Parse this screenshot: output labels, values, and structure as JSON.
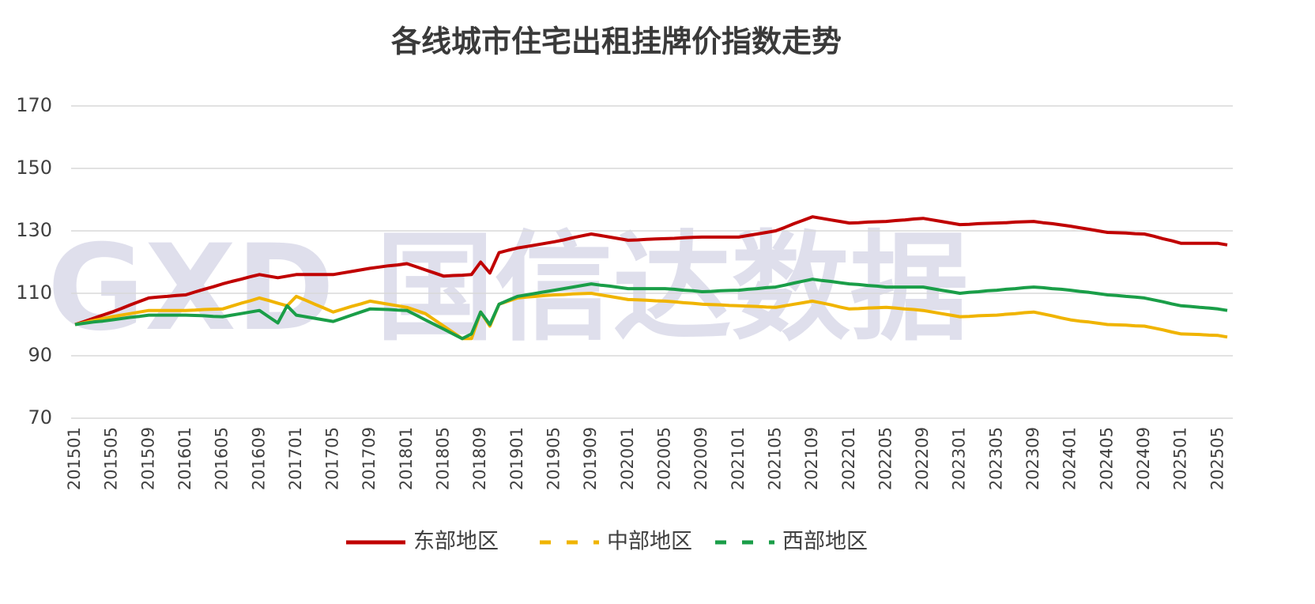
{
  "chart_data": {
    "type": "line",
    "title": "各线城市住宅出租挂牌价指数走势",
    "watermark": "GXD 国信达数据",
    "categories": [
      "201501",
      null,
      null,
      null,
      "201505",
      null,
      null,
      null,
      "201509",
      null,
      null,
      null,
      "201601",
      null,
      null,
      null,
      "201605",
      null,
      null,
      null,
      "201609",
      null,
      null,
      null,
      "201701",
      null,
      null,
      null,
      "201705",
      null,
      null,
      null,
      "201709",
      null,
      null,
      null,
      "201801",
      null,
      null,
      null,
      "201805",
      null,
      null,
      null,
      "201809",
      null,
      null,
      null,
      "201901",
      null,
      null,
      null,
      "201905",
      null,
      null,
      null,
      "201909",
      null,
      null,
      null,
      "202001",
      null,
      null,
      null,
      "202005",
      null,
      null,
      null,
      "202009",
      null,
      null,
      null,
      "202101",
      null,
      null,
      null,
      "202105",
      null,
      null,
      null,
      "202109",
      null,
      null,
      null,
      "202201",
      null,
      null,
      null,
      "202205",
      null,
      null,
      null,
      "202209",
      null,
      null,
      null,
      "202301",
      null,
      null,
      null,
      "202305",
      null,
      null,
      null,
      "202309",
      null,
      null,
      null,
      "202401",
      null,
      null,
      null,
      "202405",
      null,
      null,
      null,
      "202409",
      null,
      null,
      null,
      "202501",
      null,
      null,
      null,
      "202505",
      null
    ],
    "ylim": [
      70,
      170
    ],
    "yticks": [
      70,
      90,
      110,
      130,
      150,
      170
    ],
    "grid": true,
    "series": [
      {
        "name": "东部地区",
        "color": "#c00000",
        "legend_line": "solid",
        "values": [
          100,
          101,
          102,
          103,
          104,
          105.1,
          106.3,
          107.4,
          108.5,
          108.8,
          109,
          109.3,
          109.5,
          110.4,
          111.3,
          112.1,
          113,
          113.8,
          114.5,
          115.3,
          116,
          115.5,
          115,
          115.5,
          116,
          116,
          116,
          116,
          116,
          116.5,
          117,
          117.5,
          118,
          118.4,
          118.8,
          119.1,
          119.5,
          118.5,
          117.5,
          116.5,
          115.5,
          115.7,
          115.8,
          116,
          120,
          116.5,
          123,
          123.8,
          124.5,
          125,
          125.5,
          126,
          126.5,
          127.1,
          127.8,
          128.4,
          129,
          128.5,
          128,
          127.5,
          127,
          127.1,
          127.3,
          127.4,
          127.5,
          127.6,
          127.8,
          127.9,
          128,
          128,
          128,
          128,
          128,
          128.5,
          129,
          129.5,
          130,
          131.1,
          132.3,
          133.4,
          134.5,
          134,
          133.5,
          133,
          132.5,
          132.6,
          132.8,
          132.9,
          133,
          133.3,
          133.5,
          133.8,
          134,
          133.5,
          133,
          132.5,
          132,
          132.1,
          132.3,
          132.4,
          132.5,
          132.6,
          132.8,
          132.9,
          133,
          132.6,
          132.3,
          131.9,
          131.5,
          131,
          130.5,
          130,
          129.5,
          129.4,
          129.3,
          129.1,
          129,
          128.3,
          127.5,
          126.8,
          126,
          126,
          126,
          126,
          126,
          125.5
        ]
      },
      {
        "name": "中部地区",
        "color": "#f0b400",
        "legend_line": "dashed",
        "values": [
          100,
          100.6,
          101.3,
          101.9,
          102.5,
          103,
          103.5,
          104,
          104.5,
          104.5,
          104.5,
          104.5,
          104.5,
          104.6,
          104.8,
          104.9,
          105,
          105.9,
          106.8,
          107.6,
          108.5,
          107.7,
          106.8,
          106,
          109,
          107.8,
          106.5,
          105.3,
          104,
          104.9,
          105.8,
          106.6,
          107.5,
          107,
          106.5,
          106,
          105.5,
          104.5,
          103.5,
          101.5,
          99.5,
          97.5,
          95.5,
          95.5,
          104,
          99.5,
          106.5,
          107.5,
          108.5,
          108.8,
          109,
          109.3,
          109.5,
          109.6,
          109.8,
          109.9,
          110,
          109.5,
          109,
          108.5,
          108,
          107.9,
          107.8,
          107.6,
          107.5,
          107.3,
          107,
          106.8,
          106.5,
          106.4,
          106.3,
          106.1,
          106,
          105.9,
          105.8,
          105.6,
          105.5,
          106,
          106.5,
          107,
          107.5,
          106.9,
          106.3,
          105.6,
          105,
          105.1,
          105.3,
          105.4,
          105.5,
          105.3,
          105,
          104.8,
          104.5,
          104,
          103.5,
          103,
          102.5,
          102.6,
          102.8,
          102.9,
          103,
          103.3,
          103.5,
          103.8,
          104,
          103.4,
          102.8,
          102.1,
          101.5,
          101.1,
          100.8,
          100.4,
          100,
          99.9,
          99.8,
          99.6,
          99.5,
          98.9,
          98.3,
          97.6,
          97,
          96.9,
          96.8,
          96.6,
          96.5,
          96
        ]
      },
      {
        "name": "西部地区",
        "color": "#1a9e48",
        "legend_line": "dashed",
        "values": [
          100,
          100.4,
          100.8,
          101.1,
          101.5,
          101.9,
          102.3,
          102.6,
          103,
          103,
          103,
          103,
          103,
          102.9,
          102.8,
          102.6,
          102.5,
          103,
          103.5,
          104,
          104.5,
          102.5,
          100.5,
          106,
          103,
          102.5,
          102,
          101.5,
          101,
          102,
          103,
          104,
          105,
          104.9,
          104.8,
          104.6,
          104.5,
          103,
          101.5,
          100,
          98.5,
          97,
          95.5,
          97,
          104,
          100,
          106.5,
          107.8,
          109,
          109.5,
          110,
          110.5,
          111,
          111.5,
          112,
          112.5,
          113,
          112.6,
          112.3,
          111.9,
          111.5,
          111.5,
          111.5,
          111.5,
          111.5,
          111.3,
          111,
          110.8,
          110.5,
          110.6,
          110.8,
          110.9,
          111,
          111.3,
          111.5,
          111.8,
          112,
          112.6,
          113.3,
          113.9,
          114.5,
          114.1,
          113.8,
          113.4,
          113,
          112.8,
          112.5,
          112.3,
          112,
          112,
          112,
          112,
          112,
          111.5,
          111,
          110.5,
          110,
          110.3,
          110.5,
          110.8,
          111,
          111.3,
          111.5,
          111.8,
          112,
          111.8,
          111.5,
          111.3,
          111,
          110.6,
          110.3,
          109.9,
          109.5,
          109.3,
          109,
          108.8,
          108.5,
          107.9,
          107.3,
          106.6,
          106,
          105.8,
          105.5,
          105.3,
          105,
          104.5
        ]
      }
    ]
  }
}
